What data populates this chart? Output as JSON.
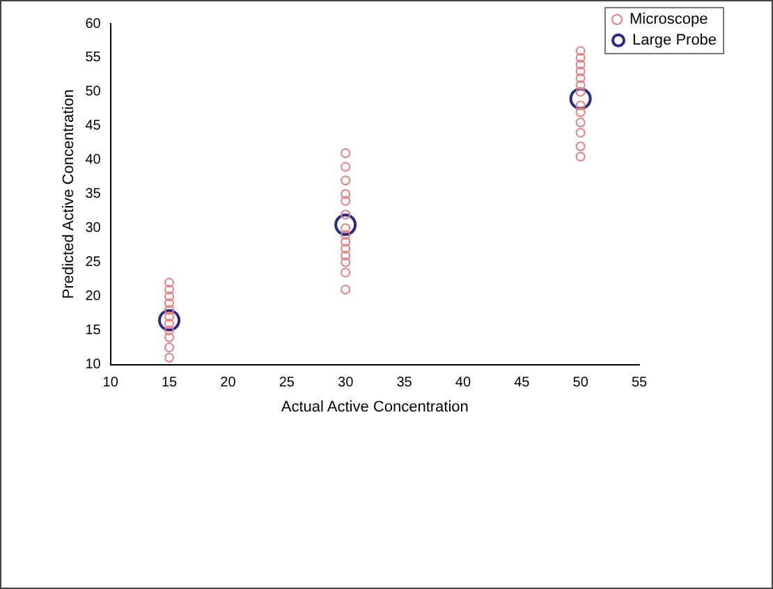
{
  "chart_data": {
    "type": "scatter",
    "xlabel": "Actual Active Concentration",
    "ylabel": "Predicted Active Concentration",
    "series": [
      {
        "name": "Microscope",
        "color": "#e88080",
        "x": [
          15,
          15,
          15,
          15,
          15,
          15,
          15,
          15,
          15,
          15,
          15,
          30,
          30,
          30,
          30,
          30,
          30,
          30,
          30,
          30,
          30,
          30,
          30,
          30,
          30,
          50,
          50,
          50,
          50,
          50,
          50,
          50,
          50,
          50,
          50,
          50,
          50,
          50
        ],
        "values": [
          11,
          12.5,
          14,
          15,
          16,
          17,
          18,
          19,
          20,
          21,
          22,
          21,
          23.5,
          25,
          26,
          27,
          28,
          29,
          30,
          32,
          34,
          35,
          37,
          39,
          41,
          40.5,
          42,
          44,
          45.5,
          47,
          48,
          50,
          51,
          52,
          53,
          54,
          55,
          56
        ]
      },
      {
        "name": "Large Probe",
        "color": "#2a2a8a",
        "x": [
          15,
          30,
          50
        ],
        "values": [
          16.5,
          30.5,
          49
        ]
      }
    ],
    "xlim": [
      10,
      55
    ],
    "xticks": [
      10,
      15,
      20,
      25,
      30,
      35,
      40,
      45,
      50,
      55
    ],
    "ylim": [
      10,
      60
    ],
    "yticks": [
      10,
      15,
      20,
      25,
      30,
      35,
      40,
      45,
      50,
      55,
      60
    ],
    "grid": false,
    "legend": "top right",
    "marker": "circle"
  }
}
